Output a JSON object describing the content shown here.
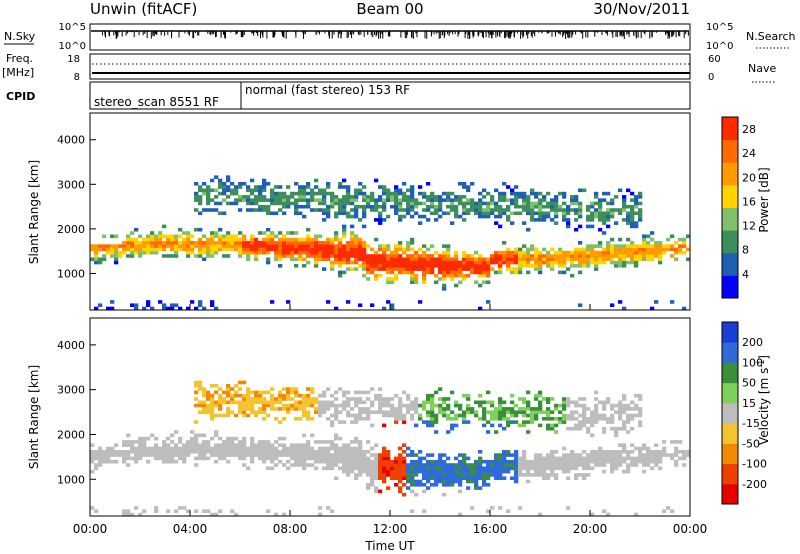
{
  "header": {
    "site": "Unwin (fitACF)",
    "beam": "Beam 00",
    "date": "30/Nov/2011"
  },
  "panels": {
    "nsky": {
      "label": "N.Sky",
      "ticks": [
        "10^5",
        "10^0"
      ],
      "right_label": "N.Search",
      "right_ticks": [
        "10^5",
        "10^0"
      ]
    },
    "freq": {
      "label_top": "Freq.",
      "label_unit": "[MHz]",
      "ticks": [
        "18",
        "8"
      ],
      "right_label": "Nave",
      "right_ticks": [
        "60",
        "0"
      ]
    },
    "cpid": {
      "label": "CPID",
      "segments": [
        "stereo_scan 8551 RF",
        "normal (fast stereo) 153 RF"
      ]
    }
  },
  "chart_data": [
    {
      "type": "heatmap",
      "title": "",
      "xlabel": "Time UT",
      "ylabel": "Slant Range [km]",
      "x_ticks": [
        "00:00",
        "04:00",
        "08:00",
        "12:00",
        "16:00",
        "20:00",
        "00:00"
      ],
      "y_ticks": [
        "1000",
        "2000",
        "3000",
        "4000"
      ],
      "xlim_hours": [
        0,
        24
      ],
      "ylim_km": [
        180,
        4600
      ],
      "colorbar": {
        "label": "Power [dB]",
        "ticks": [
          "4",
          "8",
          "12",
          "16",
          "20",
          "24",
          "28"
        ],
        "range": [
          0,
          30
        ],
        "colors": [
          "#0000ff",
          "#1f5fb4",
          "#3c8e5c",
          "#7fc06a",
          "#ffd400",
          "#ff9b00",
          "#ff6a00",
          "#ff2a00"
        ]
      }
    },
    {
      "type": "heatmap",
      "title": "",
      "xlabel": "Time UT",
      "ylabel": "Slant Range [km]",
      "x_ticks": [
        "00:00",
        "04:00",
        "08:00",
        "12:00",
        "16:00",
        "20:00",
        "00:00"
      ],
      "y_ticks": [
        "1000",
        "2000",
        "3000",
        "4000"
      ],
      "xlim_hours": [
        0,
        24
      ],
      "ylim_km": [
        180,
        4600
      ],
      "colorbar": {
        "label": "Velocity [m s^-1]",
        "ticks": [
          "200",
          "100",
          "50",
          "15",
          "-15",
          "-50",
          "-100",
          "-200"
        ],
        "colors": [
          "#1a3fd6",
          "#2f6bd8",
          "#3a8f3a",
          "#7fd05a",
          "#bdbdbd",
          "#f4c430",
          "#f08a00",
          "#f04000",
          "#e60000"
        ]
      }
    }
  ]
}
